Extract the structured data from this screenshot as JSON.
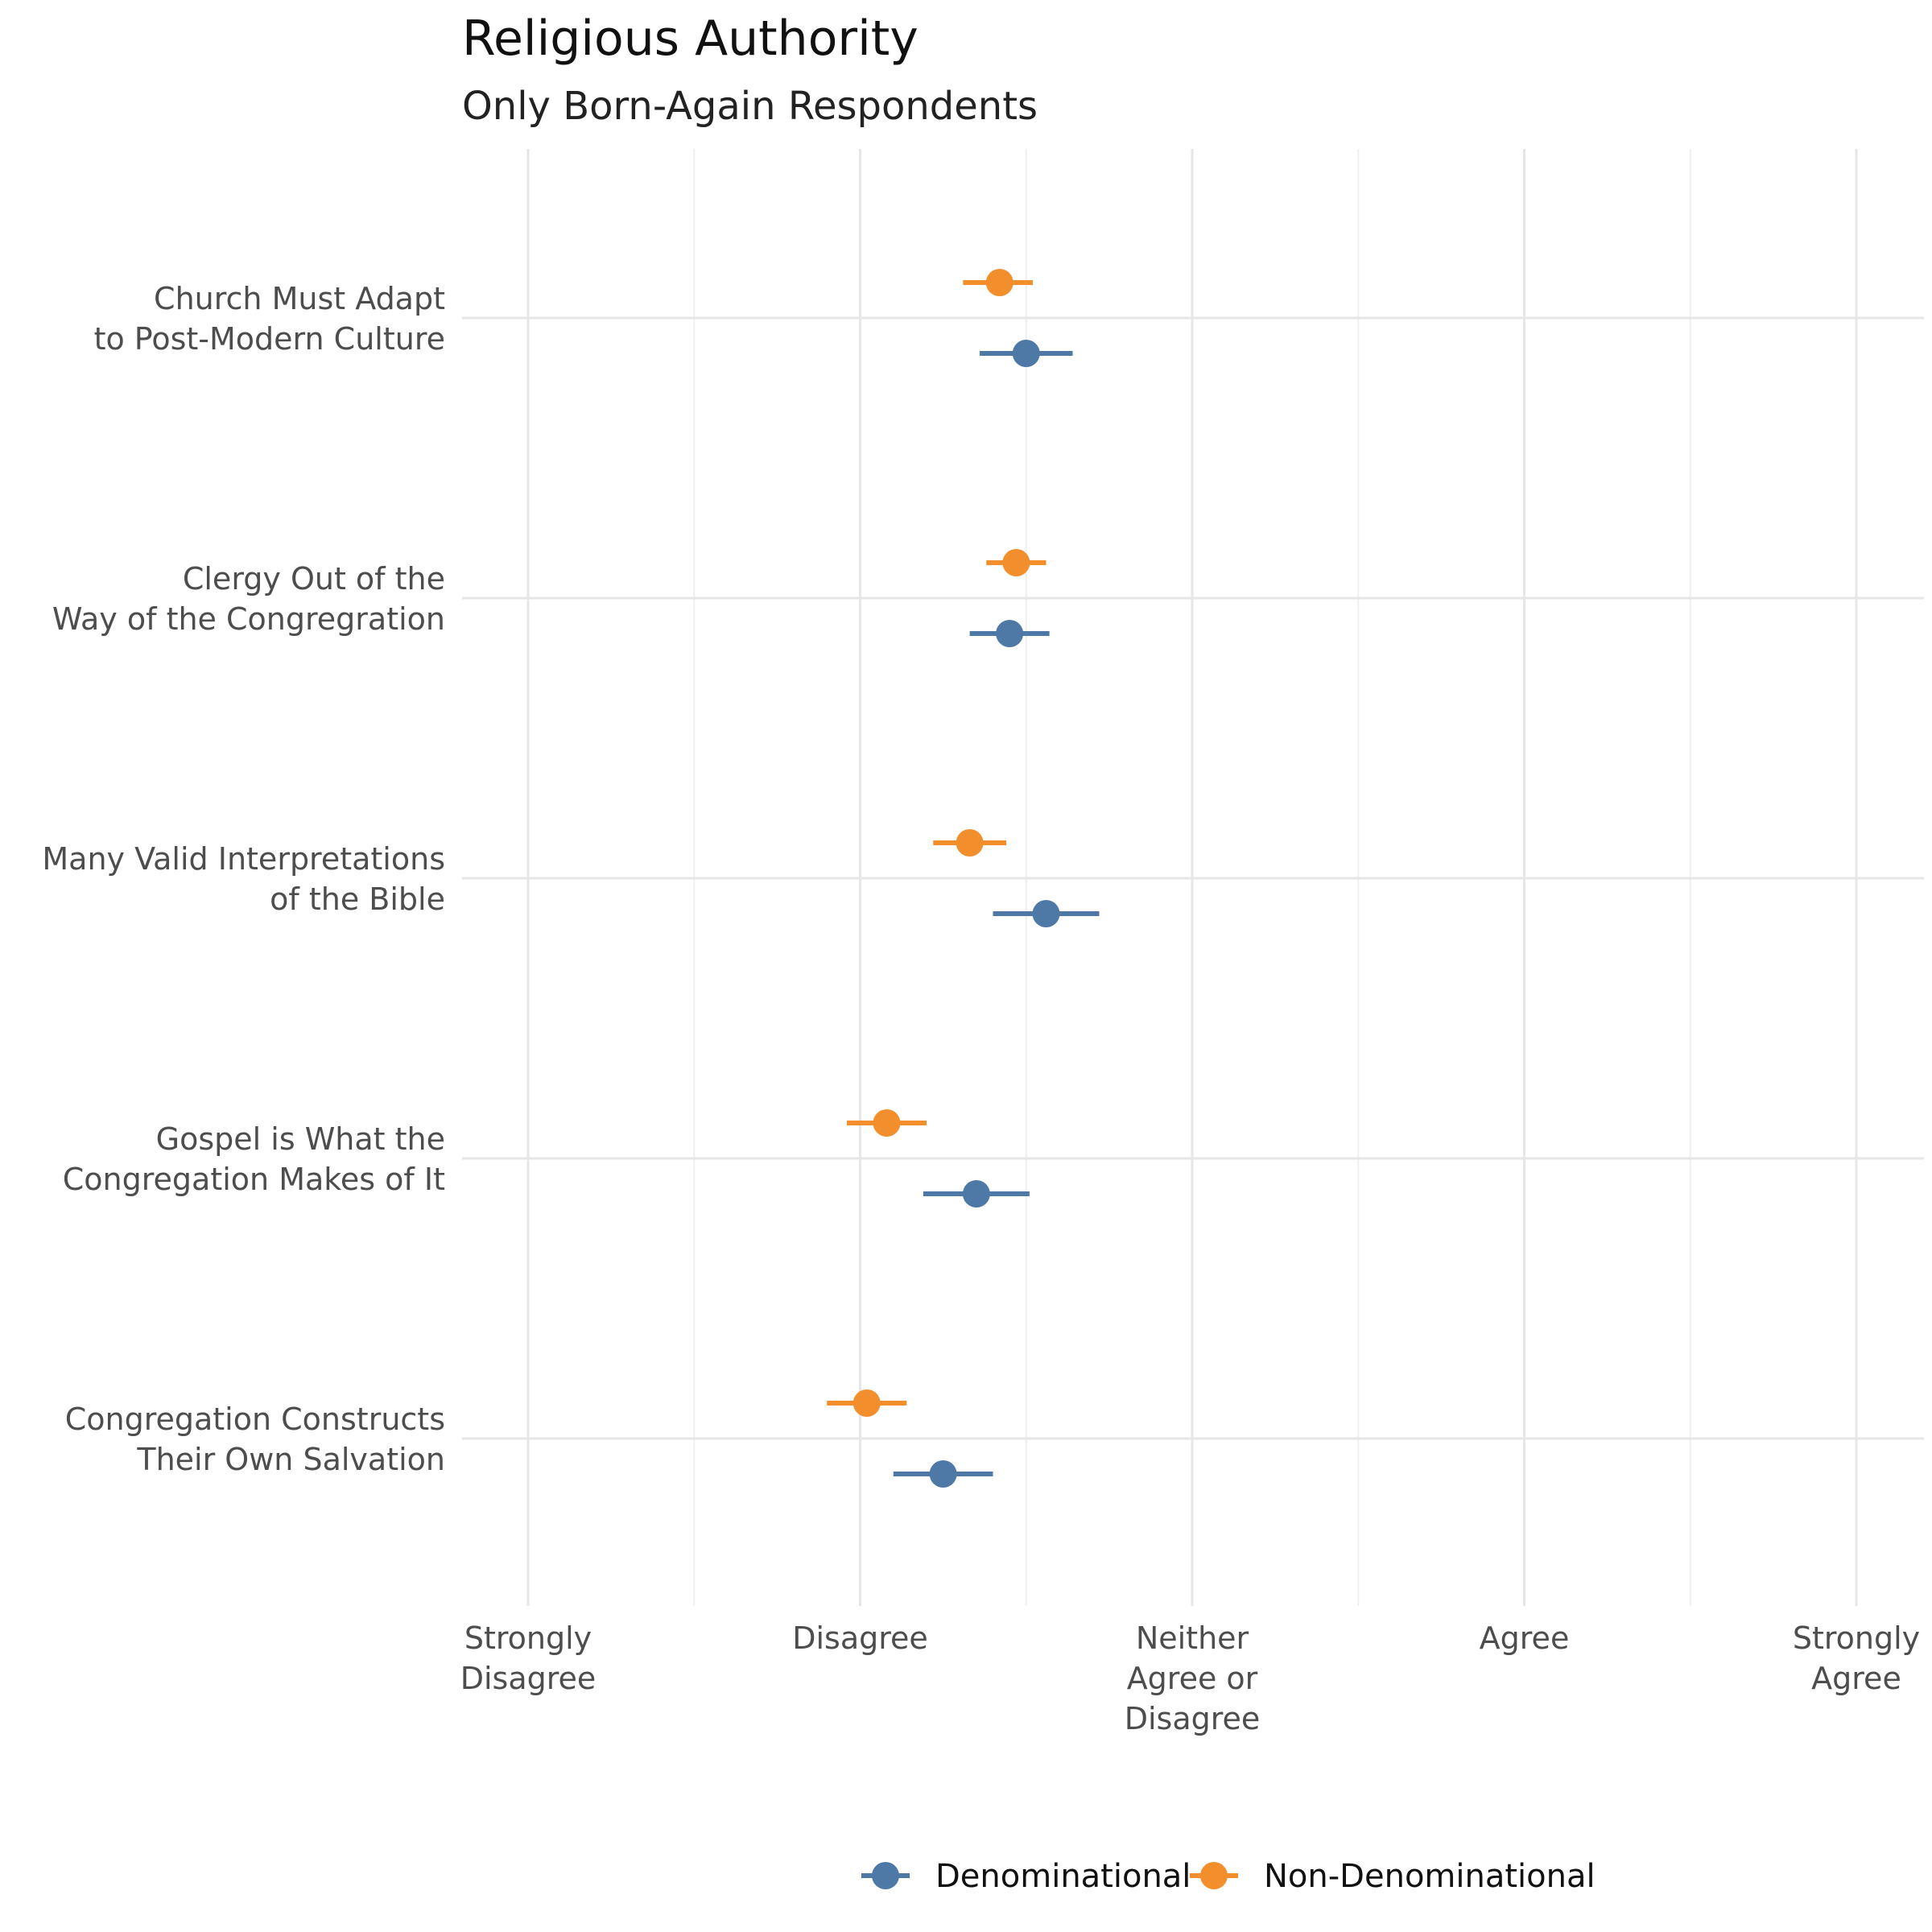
{
  "title": "Religious Authority",
  "subtitle": "Only Born-Again Respondents",
  "colors": {
    "Denominational": "#4e79a7",
    "Non-Denominational": "#f28e2b",
    "grid_major": "#e6e6e6",
    "grid_minor": "#efefef"
  },
  "chart_data": {
    "type": "scatter",
    "title": "Religious Authority",
    "subtitle": "Only Born-Again Respondents",
    "x_ticks": [
      {
        "value": 1,
        "label": [
          "Strongly",
          "Disagree"
        ]
      },
      {
        "value": 2,
        "label": [
          "Disagree"
        ]
      },
      {
        "value": 3,
        "label": [
          "Neither",
          "Agree or",
          "Disagree"
        ]
      },
      {
        "value": 4,
        "label": [
          "Agree"
        ]
      },
      {
        "value": 5,
        "label": [
          "Strongly",
          "Agree"
        ]
      }
    ],
    "xlim": [
      0.8,
      5.2
    ],
    "grid": true,
    "legend_position": "bottom",
    "categories": [
      {
        "label": [
          "Church Must Adapt",
          "to Post-Modern Culture"
        ]
      },
      {
        "label": [
          "Clergy Out of the",
          "Way of the Congregration"
        ]
      },
      {
        "label": [
          "Many Valid Interpretations",
          "of the Bible"
        ]
      },
      {
        "label": [
          "Gospel is What the",
          "Congregation Makes of It"
        ]
      },
      {
        "label": [
          "Congregation Constructs",
          "Their Own Salvation"
        ]
      }
    ],
    "series": [
      {
        "name": "Denominational",
        "values": [
          2.5,
          2.45,
          2.56,
          2.35,
          2.25
        ],
        "lower": [
          2.36,
          2.33,
          2.4,
          2.19,
          2.1
        ],
        "upper": [
          2.64,
          2.57,
          2.72,
          2.51,
          2.4
        ]
      },
      {
        "name": "Non-Denominational",
        "values": [
          2.42,
          2.47,
          2.33,
          2.08,
          2.02
        ],
        "lower": [
          2.31,
          2.38,
          2.22,
          1.96,
          1.9
        ],
        "upper": [
          2.52,
          2.56,
          2.44,
          2.2,
          2.14
        ]
      }
    ]
  }
}
